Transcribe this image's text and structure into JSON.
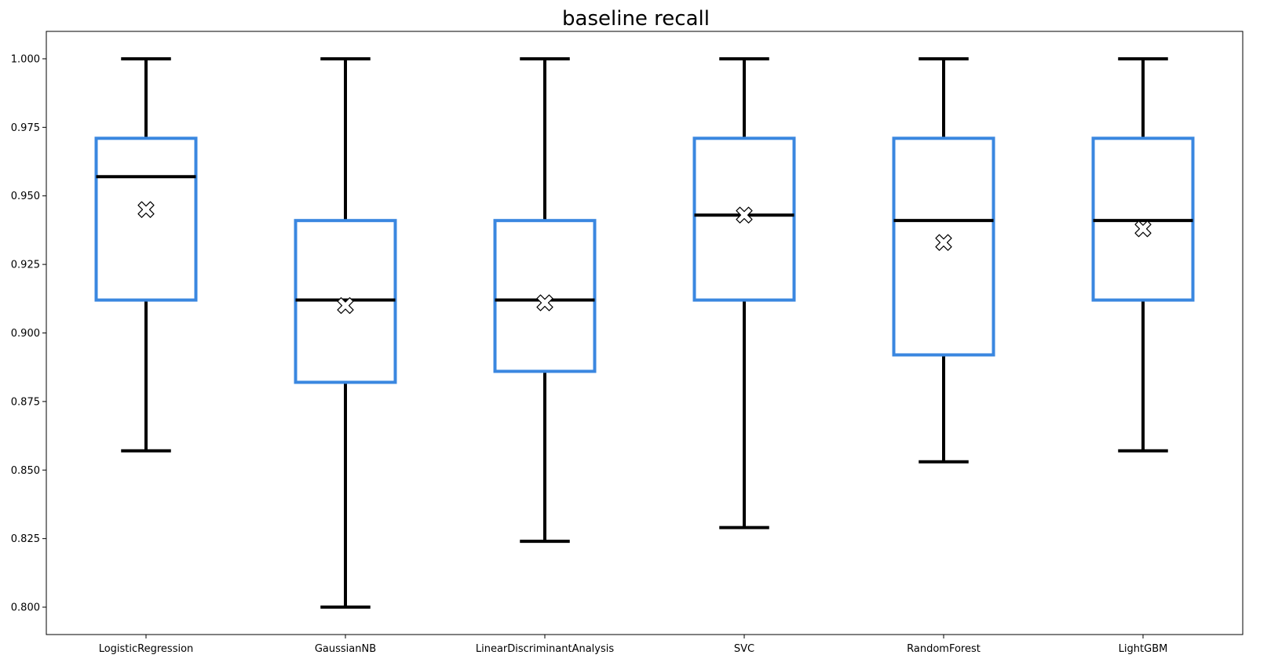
{
  "chart_data": {
    "type": "box",
    "title": "baseline recall",
    "xlabel": "",
    "ylabel": "",
    "ylim": [
      0.79,
      1.01
    ],
    "yticks": [
      0.8,
      0.825,
      0.85,
      0.875,
      0.9,
      0.925,
      0.95,
      0.975,
      1.0
    ],
    "ytick_labels": [
      "0.800",
      "0.825",
      "0.850",
      "0.875",
      "0.900",
      "0.925",
      "0.950",
      "0.975",
      "1.000"
    ],
    "grid": false,
    "legend": "none",
    "colors": {
      "box": "#3a87e0",
      "whisker": "#000000",
      "median": "#000000",
      "mean_marker_fill": "#ffffff",
      "mean_marker_edge": "#000000"
    },
    "categories": [
      "LogisticRegression",
      "GaussianNB",
      "LinearDiscriminantAnalysis",
      "SVC",
      "RandomForest",
      "LightGBM"
    ],
    "boxes": [
      {
        "label": "LogisticRegression",
        "whisker_low": 0.857,
        "q1": 0.912,
        "median": 0.957,
        "q3": 0.971,
        "whisker_high": 1.0,
        "mean": 0.945
      },
      {
        "label": "GaussianNB",
        "whisker_low": 0.8,
        "q1": 0.882,
        "median": 0.912,
        "q3": 0.941,
        "whisker_high": 1.0,
        "mean": 0.91
      },
      {
        "label": "LinearDiscriminantAnalysis",
        "whisker_low": 0.824,
        "q1": 0.886,
        "median": 0.912,
        "q3": 0.941,
        "whisker_high": 1.0,
        "mean": 0.911
      },
      {
        "label": "SVC",
        "whisker_low": 0.829,
        "q1": 0.912,
        "median": 0.943,
        "q3": 0.971,
        "whisker_high": 1.0,
        "mean": 0.943
      },
      {
        "label": "RandomForest",
        "whisker_low": 0.853,
        "q1": 0.892,
        "median": 0.941,
        "q3": 0.971,
        "whisker_high": 1.0,
        "mean": 0.933
      },
      {
        "label": "LightGBM",
        "whisker_low": 0.857,
        "q1": 0.912,
        "median": 0.941,
        "q3": 0.971,
        "whisker_high": 1.0,
        "mean": 0.938
      }
    ]
  }
}
